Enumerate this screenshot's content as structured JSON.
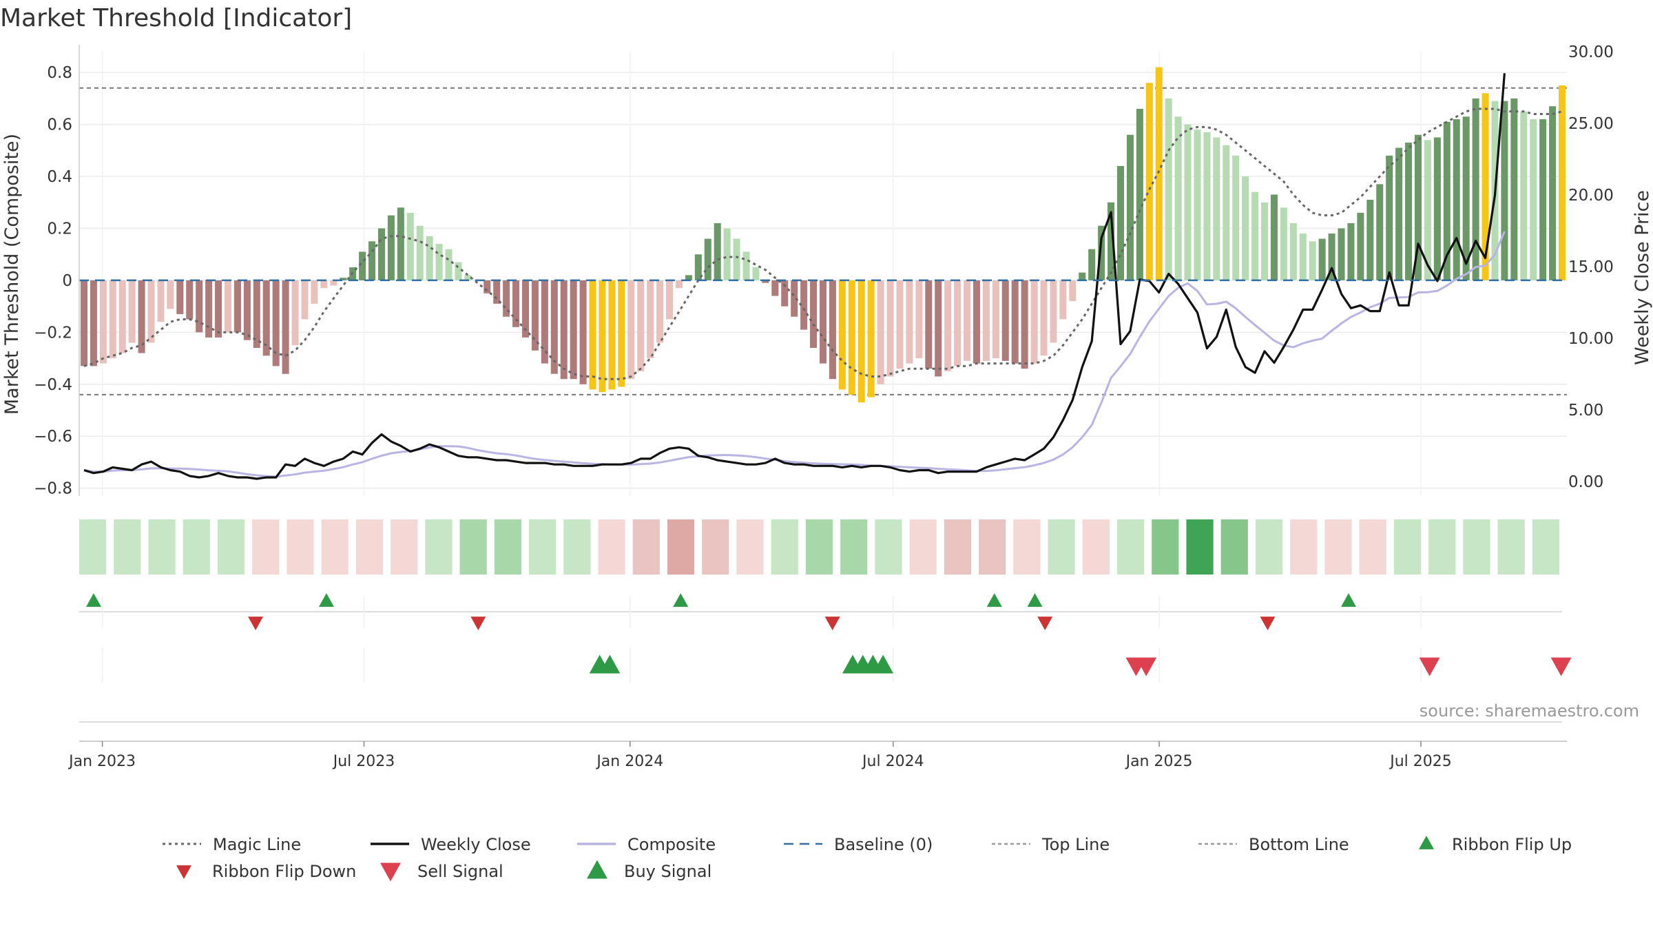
{
  "chart_data": {
    "type": "bar",
    "title": "Market Threshold [Indicator]",
    "y_left_label": "Market Threshold (Composite)",
    "y_right_label": "Weekly Close Price",
    "ylim_left": [
      -0.83,
      0.88
    ],
    "ylim_right": [
      -1.0,
      30.0
    ],
    "y_left_ticks": [
      {
        "v": 0.8,
        "label": "0.8"
      },
      {
        "v": 0.6,
        "label": "0.6"
      },
      {
        "v": 0.4,
        "label": "0.4"
      },
      {
        "v": 0.2,
        "label": "0.2"
      },
      {
        "v": 0,
        "label": "0"
      },
      {
        "v": -0.2,
        "label": "−0.2"
      },
      {
        "v": -0.4,
        "label": "−0.4"
      },
      {
        "v": -0.6,
        "label": "−0.6"
      },
      {
        "v": -0.8,
        "label": "−0.8"
      }
    ],
    "y_right_ticks": [
      {
        "v": 30,
        "label": "30.00"
      },
      {
        "v": 25,
        "label": "25.00"
      },
      {
        "v": 20,
        "label": "20.00"
      },
      {
        "v": 15,
        "label": "15.00"
      },
      {
        "v": 10,
        "label": "10.00"
      },
      {
        "v": 5,
        "label": "5.00"
      },
      {
        "v": 0,
        "label": "0.00"
      }
    ],
    "x_ticks": [
      {
        "date": "2023-01-01",
        "label": "Jan 2023"
      },
      {
        "date": "2023-07-01",
        "label": "Jul 2023"
      },
      {
        "date": "2024-01-01",
        "label": "Jan 2024"
      },
      {
        "date": "2024-07-01",
        "label": "Jul 2024"
      },
      {
        "date": "2025-01-01",
        "label": "Jan 2025"
      },
      {
        "date": "2025-07-01",
        "label": "Jul 2025"
      }
    ],
    "x_range": [
      "2022-12-16",
      "2025-10-10"
    ],
    "top_line": 0.74,
    "bottom_line": -0.44,
    "baseline": 0,
    "composite": [
      -0.33,
      -0.33,
      -0.32,
      -0.3,
      -0.28,
      -0.24,
      -0.28,
      -0.24,
      -0.16,
      -0.11,
      -0.13,
      -0.15,
      -0.2,
      -0.22,
      -0.22,
      -0.2,
      -0.2,
      -0.23,
      -0.26,
      -0.29,
      -0.33,
      -0.36,
      -0.25,
      -0.15,
      -0.09,
      -0.03,
      -0.02,
      0.01,
      0.05,
      0.11,
      0.15,
      0.2,
      0.25,
      0.28,
      0.26,
      0.21,
      0.17,
      0.14,
      0.12,
      0.07,
      0.02,
      0,
      -0.05,
      -0.09,
      -0.14,
      -0.18,
      -0.22,
      -0.27,
      -0.32,
      -0.36,
      -0.38,
      -0.38,
      -0.4,
      -0.42,
      -0.43,
      -0.42,
      -0.41,
      -0.38,
      -0.35,
      -0.3,
      -0.24,
      -0.15,
      -0.03,
      0.02,
      0.1,
      0.16,
      0.22,
      0.2,
      0.16,
      0.11,
      0.05,
      -0.01,
      -0.06,
      -0.1,
      -0.14,
      -0.19,
      -0.26,
      -0.32,
      -0.38,
      -0.42,
      -0.44,
      -0.47,
      -0.45,
      -0.4,
      -0.37,
      -0.34,
      -0.32,
      -0.3,
      -0.34,
      -0.37,
      -0.35,
      -0.33,
      -0.31,
      -0.32,
      -0.31,
      -0.3,
      -0.31,
      -0.32,
      -0.34,
      -0.32,
      -0.29,
      -0.24,
      -0.15,
      -0.08,
      0.03,
      0.12,
      0.21,
      0.3,
      0.44,
      0.56,
      0.66,
      0.76,
      0.82,
      0.7,
      0.63,
      0.6,
      0.58,
      0.57,
      0.55,
      0.52,
      0.48,
      0.4,
      0.34,
      0.3,
      0.33,
      0.28,
      0.22,
      0.18,
      0.15,
      0.16,
      0.18,
      0.2,
      0.22,
      0.26,
      0.31,
      0.37,
      0.48,
      0.51,
      0.53,
      0.56,
      0.54,
      0.55,
      0.61,
      0.62,
      0.63,
      0.7,
      0.72,
      0.69,
      0.69,
      0.7,
      0.65,
      0.62,
      0.62,
      0.67,
      0.75
    ],
    "magic_line": [
      -0.33,
      -0.32,
      -0.3,
      -0.29,
      -0.28,
      -0.26,
      -0.25,
      -0.22,
      -0.19,
      -0.16,
      -0.15,
      -0.15,
      -0.16,
      -0.18,
      -0.2,
      -0.2,
      -0.2,
      -0.21,
      -0.23,
      -0.25,
      -0.28,
      -0.29,
      -0.27,
      -0.23,
      -0.18,
      -0.12,
      -0.07,
      -0.02,
      0.03,
      0.07,
      0.11,
      0.16,
      0.17,
      0.17,
      0.16,
      0.15,
      0.13,
      0.1,
      0.08,
      0.05,
      0.02,
      -0.01,
      -0.04,
      -0.07,
      -0.11,
      -0.15,
      -0.19,
      -0.23,
      -0.27,
      -0.31,
      -0.34,
      -0.36,
      -0.37,
      -0.37,
      -0.38,
      -0.38,
      -0.38,
      -0.37,
      -0.34,
      -0.3,
      -0.24,
      -0.18,
      -0.12,
      -0.06,
      0,
      0.05,
      0.08,
      0.09,
      0.09,
      0.08,
      0.06,
      0.04,
      0.01,
      -0.02,
      -0.06,
      -0.11,
      -0.17,
      -0.22,
      -0.27,
      -0.31,
      -0.34,
      -0.36,
      -0.37,
      -0.37,
      -0.36,
      -0.35,
      -0.34,
      -0.34,
      -0.34,
      -0.34,
      -0.34,
      -0.33,
      -0.33,
      -0.32,
      -0.32,
      -0.32,
      -0.32,
      -0.32,
      -0.32,
      -0.32,
      -0.31,
      -0.29,
      -0.25,
      -0.2,
      -0.15,
      -0.09,
      -0.03,
      0.03,
      0.1,
      0.18,
      0.27,
      0.35,
      0.42,
      0.5,
      0.55,
      0.58,
      0.59,
      0.59,
      0.58,
      0.56,
      0.53,
      0.5,
      0.47,
      0.44,
      0.41,
      0.38,
      0.33,
      0.29,
      0.26,
      0.25,
      0.25,
      0.26,
      0.29,
      0.32,
      0.36,
      0.4,
      0.44,
      0.47,
      0.51,
      0.54,
      0.57,
      0.59,
      0.61,
      0.63,
      0.65,
      0.66,
      0.66,
      0.66,
      0.65,
      0.65,
      0.65,
      0.64,
      0.64,
      0.64,
      0.65
    ],
    "weekly_close": [
      0.8,
      0.6,
      0.7,
      1.0,
      0.9,
      0.8,
      1.2,
      1.4,
      1.0,
      0.8,
      0.7,
      0.4,
      0.3,
      0.4,
      0.6,
      0.4,
      0.3,
      0.3,
      0.2,
      0.3,
      0.3,
      1.2,
      1.1,
      1.6,
      1.3,
      1.1,
      1.4,
      1.6,
      2.1,
      1.9,
      2.7,
      3.3,
      2.8,
      2.5,
      2.1,
      2.3,
      2.6,
      2.4,
      2.1,
      1.8,
      1.7,
      1.7,
      1.6,
      1.5,
      1.5,
      1.4,
      1.3,
      1.3,
      1.3,
      1.2,
      1.2,
      1.1,
      1.1,
      1.1,
      1.2,
      1.2,
      1.2,
      1.3,
      1.6,
      1.6,
      2.0,
      2.3,
      2.4,
      2.3,
      1.8,
      1.7,
      1.5,
      1.4,
      1.3,
      1.2,
      1.2,
      1.3,
      1.6,
      1.3,
      1.2,
      1.2,
      1.1,
      1.1,
      1.1,
      1.0,
      1.1,
      1.0,
      1.1,
      1.1,
      1.0,
      0.8,
      0.7,
      0.8,
      0.8,
      0.6,
      0.7,
      0.7,
      0.7,
      0.7,
      1.0,
      1.2,
      1.4,
      1.6,
      1.5,
      1.9,
      2.3,
      3.1,
      4.3,
      5.7,
      8.0,
      9.8,
      17.0,
      18.8,
      9.6,
      10.5,
      14.1,
      14.0,
      13.2,
      14.5,
      13.8,
      12.8,
      11.8,
      9.3,
      10.1,
      12.0,
      9.4,
      8.0,
      7.6,
      9.1,
      8.3,
      9.4,
      10.6,
      12.0,
      12.0,
      13.4,
      14.9,
      13.1,
      12.1,
      12.3,
      11.9,
      11.9,
      14.6,
      12.3,
      12.3,
      16.6,
      15.1,
      14.0,
      15.8,
      17.0,
      15.2,
      16.8,
      15.6,
      20.0,
      28.5
    ],
    "ribbon": [
      {
        "s": "Bullish",
        "n": 1
      },
      {
        "s": "Bullish",
        "n": 1
      },
      {
        "s": "Bullish",
        "n": 1
      },
      {
        "s": "Bullish",
        "n": 1
      },
      {
        "s": "Bullish",
        "n": 1
      },
      {
        "s": "Bearish",
        "n": 1
      },
      {
        "s": "Bearish",
        "n": 1
      },
      {
        "s": "Bearish",
        "n": 1
      },
      {
        "s": "Bearish",
        "n": 1
      },
      {
        "s": "Bearish",
        "n": 1
      },
      {
        "s": "Bullish",
        "n": 1
      },
      {
        "s": "Bullish",
        "n": 2
      },
      {
        "s": "Bullish",
        "n": 2
      },
      {
        "s": "Bullish",
        "n": 1
      },
      {
        "s": "Bullish",
        "n": 1
      },
      {
        "s": "Bearish",
        "n": 1
      },
      {
        "s": "Bearish",
        "n": 2
      },
      {
        "s": "Bearish",
        "n": 3
      },
      {
        "s": "Bearish",
        "n": 2
      },
      {
        "s": "Bearish",
        "n": 1
      },
      {
        "s": "Bullish",
        "n": 1
      },
      {
        "s": "Bullish",
        "n": 2
      },
      {
        "s": "Bullish",
        "n": 2
      },
      {
        "s": "Bullish",
        "n": 1
      },
      {
        "s": "Bearish",
        "n": 1
      },
      {
        "s": "Bearish",
        "n": 2
      },
      {
        "s": "Bearish",
        "n": 2
      },
      {
        "s": "Bearish",
        "n": 1
      },
      {
        "s": "Bullish",
        "n": 1
      },
      {
        "s": "Bearish",
        "n": 1
      },
      {
        "s": "Bullish",
        "n": 1
      },
      {
        "s": "Bullish",
        "n": 3
      },
      {
        "s": "Bullish",
        "n": 5
      },
      {
        "s": "Bullish",
        "n": 3
      },
      {
        "s": "Bullish",
        "n": 1
      },
      {
        "s": "Bearish",
        "n": 1
      },
      {
        "s": "Bearish",
        "n": 1
      },
      {
        "s": "Bearish",
        "n": 1
      },
      {
        "s": "Bullish",
        "n": 1
      },
      {
        "s": "Bullish",
        "n": 1
      },
      {
        "s": "Bullish",
        "n": 1
      },
      {
        "s": "Bullish",
        "n": 1
      },
      {
        "s": "Bullish",
        "n": 1
      }
    ],
    "ribbon_flip_up": [
      "2022-12-26",
      "2023-06-05",
      "2024-02-05",
      "2024-09-09",
      "2024-10-07",
      "2025-05-12"
    ],
    "ribbon_flip_down": [
      "2023-04-17",
      "2023-09-18",
      "2024-05-20",
      "2024-10-14",
      "2025-03-17"
    ],
    "buy_signal": [
      "2023-12-11",
      "2023-12-18",
      "2024-06-03",
      "2024-06-10",
      "2024-06-17",
      "2024-06-24"
    ],
    "sell_signal": [
      "2024-12-16",
      "2024-12-23",
      "2025-07-07",
      "2025-10-06"
    ],
    "source": "source: sharemaestro.com",
    "legend": [
      {
        "name": "Magic Line",
        "kind": "dotted",
        "color": "#666666"
      },
      {
        "name": "Weekly Close",
        "kind": "solid",
        "color": "#111111"
      },
      {
        "name": "Composite",
        "kind": "solid",
        "color": "#b8b4e4"
      },
      {
        "name": "Baseline (0)",
        "kind": "dashed",
        "color": "#2e6fa8"
      },
      {
        "name": "Top Line",
        "kind": "dashed",
        "color": "#999999"
      },
      {
        "name": "Bottom Line",
        "kind": "dashed",
        "color": "#999999"
      },
      {
        "name": "Ribbon Flip Up",
        "kind": "tri-up-small",
        "color": "#2e9a46"
      },
      {
        "name": "Ribbon Flip Down",
        "kind": "tri-down-small",
        "color": "#cc3333"
      },
      {
        "name": "Sell Signal",
        "kind": "tri-down",
        "color": "#dd4150"
      },
      {
        "name": "Buy Signal",
        "kind": "tri-up",
        "color": "#2e9a46"
      }
    ],
    "legend_layout": "bottom",
    "colors": {
      "bull_strong": "#6a9866",
      "bull_light": "#b6dbb3",
      "bear_strong": "#ad7b79",
      "bear_light": "#e8c1bd",
      "extreme": "#f5c518",
      "grid": "#ebebeb"
    }
  }
}
